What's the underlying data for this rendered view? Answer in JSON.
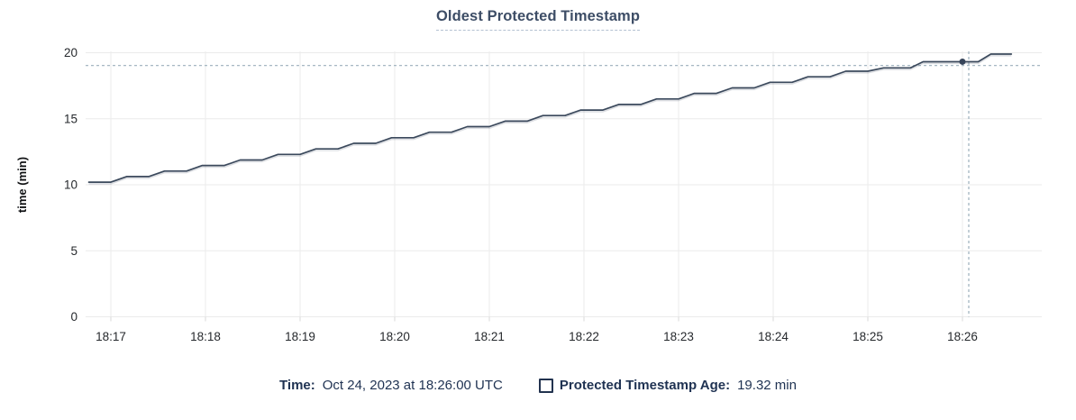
{
  "title": {
    "text": "Oldest Protected Timestamp"
  },
  "footer": {
    "time_label": "Time:",
    "time_value": "Oct 24, 2023 at 18:26:00 UTC",
    "series_label": "Protected Timestamp Age:",
    "series_value": "19.32 min"
  },
  "colors": {
    "title": "#3d4d66",
    "footer_text": "#1f3252",
    "line": "#3b495c",
    "dot": "#36445a",
    "gridline": "#ebebeb",
    "tick_mark": "#d9d9d9",
    "tick_text": "#26292d",
    "crosshair": "#9bafbc"
  },
  "chart_data": {
    "type": "line",
    "title": "Oldest Protected Timestamp",
    "xlabel": "",
    "ylabel": "time (min)",
    "ylim": [
      0,
      20
    ],
    "yticks": [
      0,
      5,
      10,
      15,
      20
    ],
    "xtick_labels": [
      "18:17",
      "18:18",
      "18:19",
      "18:20",
      "18:21",
      "18:22",
      "18:23",
      "18:24",
      "18:25",
      "18:26"
    ],
    "xtick_seconds": [
      14,
      74,
      134,
      194,
      254,
      314,
      374,
      434,
      494,
      554
    ],
    "x_origin_time": "18:16:46 UTC",
    "x_unit": "seconds after 18:16:46 UTC",
    "xlim_times": [
      "18:16:44",
      "18:26:50"
    ],
    "xlim_seconds": [
      -2,
      604
    ],
    "grid": true,
    "legend_position": "bottom",
    "series": [
      {
        "name": "Protected Timestamp Age",
        "unit": "min",
        "points": [
          [
            0,
            10.2
          ],
          [
            14,
            10.2
          ],
          [
            24,
            10.62
          ],
          [
            38,
            10.62
          ],
          [
            48,
            11.04
          ],
          [
            62,
            11.04
          ],
          [
            72,
            11.46
          ],
          [
            86,
            11.46
          ],
          [
            96,
            11.88
          ],
          [
            110,
            11.88
          ],
          [
            120,
            12.3
          ],
          [
            134,
            12.3
          ],
          [
            144,
            12.72
          ],
          [
            158,
            12.72
          ],
          [
            168,
            13.14
          ],
          [
            182,
            13.14
          ],
          [
            192,
            13.56
          ],
          [
            206,
            13.56
          ],
          [
            216,
            13.98
          ],
          [
            230,
            13.98
          ],
          [
            240,
            14.4
          ],
          [
            254,
            14.4
          ],
          [
            264,
            14.82
          ],
          [
            278,
            14.82
          ],
          [
            288,
            15.24
          ],
          [
            302,
            15.24
          ],
          [
            312,
            15.66
          ],
          [
            326,
            15.66
          ],
          [
            336,
            16.08
          ],
          [
            350,
            16.08
          ],
          [
            360,
            16.5
          ],
          [
            374,
            16.5
          ],
          [
            384,
            16.92
          ],
          [
            398,
            16.92
          ],
          [
            408,
            17.34
          ],
          [
            422,
            17.34
          ],
          [
            432,
            17.76
          ],
          [
            446,
            17.76
          ],
          [
            456,
            18.18
          ],
          [
            470,
            18.18
          ],
          [
            480,
            18.6
          ],
          [
            494,
            18.6
          ],
          [
            504,
            18.85
          ],
          [
            521,
            18.85
          ],
          [
            529,
            19.32
          ],
          [
            564,
            19.32
          ],
          [
            572,
            19.9
          ],
          [
            585,
            19.9
          ]
        ]
      }
    ],
    "crosshair": {
      "hover_time": "18:26:00",
      "dot_t_seconds": 554,
      "dot_value": 19.32,
      "vline_t_seconds": 558,
      "hline_value": 19.03
    }
  }
}
